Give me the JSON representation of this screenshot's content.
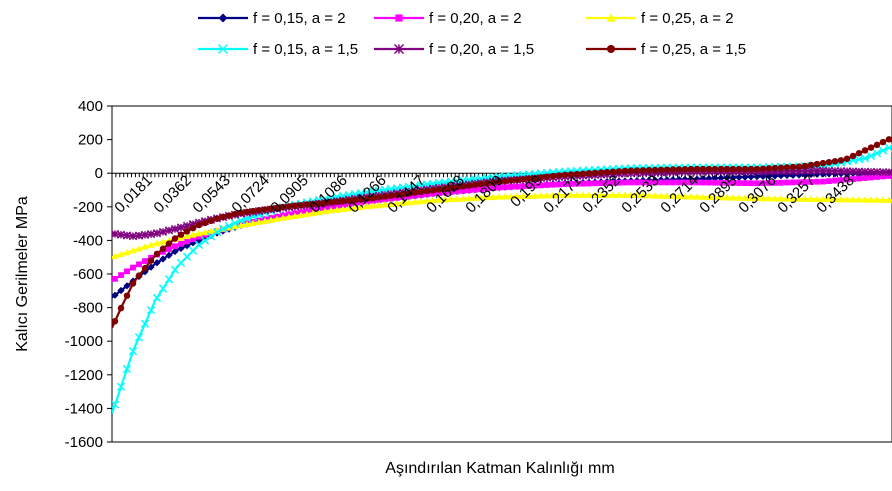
{
  "chart_data": {
    "type": "line",
    "title": "",
    "xlabel": "Aşındırılan Katman Kalınlığı mm",
    "ylabel": "Kalıcı Gerilmeler MPa",
    "ylim": [
      -1600,
      400
    ],
    "yticks": [
      400,
      200,
      0,
      -200,
      -400,
      -600,
      -800,
      -1000,
      -1200,
      -1400,
      -1600
    ],
    "ytick_labels": [
      "400",
      "200",
      "0",
      "-200",
      "-400",
      "-600",
      "-800",
      "-1000",
      "-1200",
      "-1400",
      "-1600"
    ],
    "xlim": [
      0,
      0.3619
    ],
    "xticks": [
      0.0181,
      0.0362,
      0.0543,
      0.0724,
      0.0905,
      0.1086,
      0.1266,
      0.1447,
      0.1628,
      0.1809,
      0.199,
      0.2171,
      0.2352,
      0.2533,
      0.2714,
      0.2895,
      0.3076,
      0.3257,
      0.3438
    ],
    "xtick_labels": [
      "0,0181",
      "0,0362",
      "0,0543",
      "0,0724",
      "0,0905",
      "0,1086",
      "0,1266",
      "0,1447",
      "0,1628",
      "0,1809",
      "0,199",
      "0,2171",
      "0,2352",
      "0,2533",
      "0,2714",
      "0,2895",
      "0,3076",
      "0,3257",
      "0,3438"
    ],
    "grid": false,
    "legend_position": "top",
    "series": [
      {
        "name": "f = 0,15, a = 2",
        "color": "#000080",
        "marker": "diamond",
        "x": [
          0,
          0.01,
          0.02,
          0.03,
          0.04,
          0.05,
          0.06,
          0.08,
          0.1,
          0.12,
          0.15,
          0.18,
          0.21,
          0.24,
          0.27,
          0.3,
          0.33,
          0.3619
        ],
        "y": [
          -740,
          -640,
          -540,
          -460,
          -400,
          -350,
          -310,
          -250,
          -205,
          -170,
          -120,
          -85,
          -60,
          -45,
          -35,
          -20,
          -5,
          5
        ]
      },
      {
        "name": "f = 0,20, a = 2",
        "color": "#FF00FF",
        "marker": "square",
        "x": [
          0,
          0.01,
          0.02,
          0.03,
          0.04,
          0.05,
          0.06,
          0.08,
          0.1,
          0.12,
          0.15,
          0.18,
          0.21,
          0.24,
          0.27,
          0.3,
          0.33,
          0.3619
        ],
        "y": [
          -640,
          -560,
          -490,
          -430,
          -380,
          -340,
          -305,
          -250,
          -205,
          -165,
          -120,
          -85,
          -65,
          -55,
          -55,
          -60,
          -50,
          -15
        ]
      },
      {
        "name": "f = 0,25, a = 2",
        "color": "#FFFF00",
        "marker": "triangle",
        "x": [
          0,
          0.02,
          0.04,
          0.06,
          0.08,
          0.1,
          0.12,
          0.15,
          0.18,
          0.21,
          0.24,
          0.27,
          0.3,
          0.33,
          0.3619
        ],
        "y": [
          -500,
          -420,
          -360,
          -310,
          -265,
          -225,
          -195,
          -160,
          -140,
          -130,
          -130,
          -140,
          -150,
          -155,
          -160
        ]
      },
      {
        "name": "f = 0,15, a = 1,5",
        "color": "#00FFFF",
        "marker": "x",
        "x": [
          0,
          0.01,
          0.02,
          0.03,
          0.04,
          0.05,
          0.06,
          0.08,
          0.1,
          0.12,
          0.15,
          0.18,
          0.21,
          0.24,
          0.27,
          0.3,
          0.33,
          0.35,
          0.3619
        ],
        "y": [
          -1430,
          -1050,
          -760,
          -560,
          -430,
          -340,
          -280,
          -200,
          -150,
          -110,
          -60,
          -20,
          10,
          30,
          35,
          35,
          45,
          90,
          160
        ]
      },
      {
        "name": "f = 0,20, a = 1,5",
        "color": "#800080",
        "marker": "star",
        "x": [
          0,
          0.01,
          0.02,
          0.03,
          0.04,
          0.05,
          0.06,
          0.08,
          0.1,
          0.12,
          0.15,
          0.18,
          0.21,
          0.24,
          0.27,
          0.3,
          0.33,
          0.3619
        ],
        "y": [
          -360,
          -375,
          -360,
          -330,
          -295,
          -265,
          -240,
          -205,
          -175,
          -140,
          -90,
          -45,
          -20,
          0,
          10,
          10,
          15,
          5
        ]
      },
      {
        "name": "f = 0,25, a = 1,5",
        "color": "#800000",
        "marker": "circle",
        "x": [
          0,
          0.005,
          0.01,
          0.02,
          0.03,
          0.04,
          0.05,
          0.06,
          0.08,
          0.1,
          0.12,
          0.15,
          0.18,
          0.21,
          0.24,
          0.27,
          0.3,
          0.32,
          0.34,
          0.3619
        ],
        "y": [
          -920,
          -780,
          -650,
          -490,
          -380,
          -310,
          -265,
          -235,
          -200,
          -175,
          -150,
          -100,
          -50,
          -10,
          15,
          25,
          25,
          40,
          80,
          210
        ]
      }
    ]
  }
}
